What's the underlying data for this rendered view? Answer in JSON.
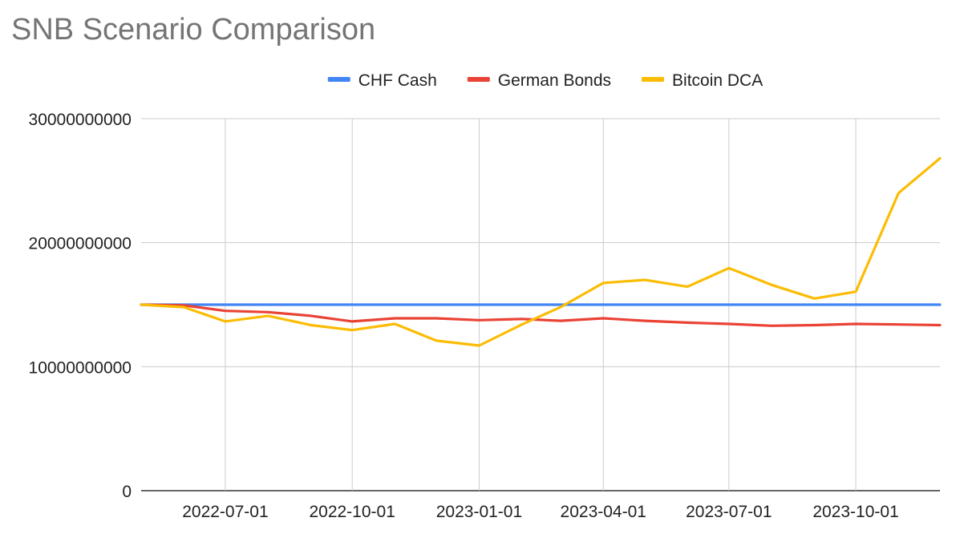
{
  "chart_data": {
    "type": "line",
    "title": "SNB Scenario Comparison",
    "xlabel": "",
    "ylabel": "",
    "legend_position": "top",
    "grid": true,
    "ylim": [
      0,
      30000000000
    ],
    "y_ticks": [
      0,
      10000000000,
      20000000000,
      30000000000
    ],
    "y_tick_labels": [
      "0",
      "10000000000",
      "20000000000",
      "30000000000"
    ],
    "x_ticks": [
      "2022-07-01",
      "2022-10-01",
      "2023-01-01",
      "2023-04-01",
      "2023-07-01",
      "2023-10-01"
    ],
    "x": [
      "2022-05-01",
      "2022-06-01",
      "2022-07-01",
      "2022-08-01",
      "2022-09-01",
      "2022-10-01",
      "2022-11-01",
      "2022-12-01",
      "2023-01-01",
      "2023-02-01",
      "2023-03-01",
      "2023-04-01",
      "2023-05-01",
      "2023-06-01",
      "2023-07-01",
      "2023-08-01",
      "2023-09-01",
      "2023-10-01",
      "2023-11-01",
      "2023-12-01"
    ],
    "series": [
      {
        "name": "CHF Cash",
        "color": "#4285f4",
        "values": [
          15000000000,
          15000000000,
          15000000000,
          15000000000,
          15000000000,
          15000000000,
          15000000000,
          15000000000,
          15000000000,
          15000000000,
          15000000000,
          15000000000,
          15000000000,
          15000000000,
          15000000000,
          15000000000,
          15000000000,
          15000000000,
          15000000000,
          15000000000
        ]
      },
      {
        "name": "German Bonds",
        "color": "#ea4335",
        "values": [
          15000000000,
          14950000000,
          14500000000,
          14400000000,
          14100000000,
          13650000000,
          13900000000,
          13900000000,
          13750000000,
          13850000000,
          13700000000,
          13900000000,
          13700000000,
          13550000000,
          13450000000,
          13300000000,
          13350000000,
          13450000000,
          13400000000,
          13350000000
        ]
      },
      {
        "name": "Bitcoin DCA",
        "color": "#fbbc04",
        "values": [
          15000000000,
          14800000000,
          13650000000,
          14100000000,
          13350000000,
          12950000000,
          13450000000,
          12100000000,
          11700000000,
          13400000000,
          14800000000,
          16750000000,
          17000000000,
          16450000000,
          17950000000,
          16600000000,
          15500000000,
          16050000000,
          24000000000,
          26800000000
        ]
      }
    ]
  }
}
